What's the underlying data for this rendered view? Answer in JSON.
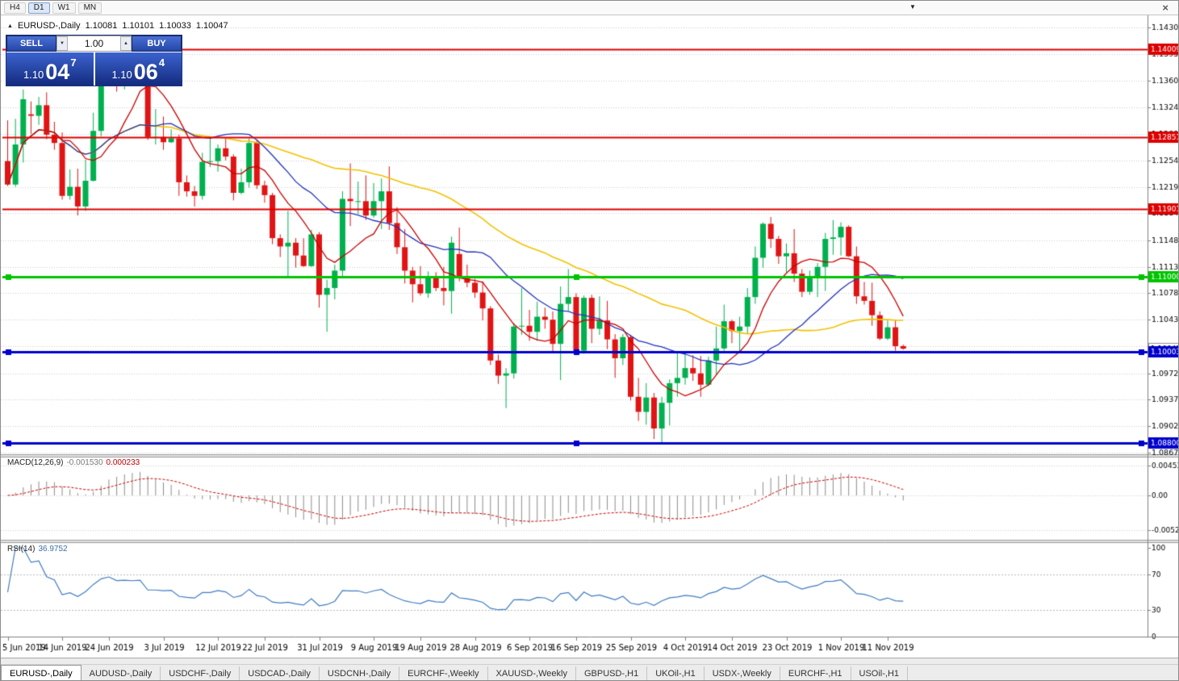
{
  "toolbar": {
    "timeframes": [
      {
        "label": "H4",
        "active": false
      },
      {
        "label": "D1",
        "active": true
      },
      {
        "label": "W1",
        "active": false
      },
      {
        "label": "MN",
        "active": false
      }
    ]
  },
  "window_controls": {
    "close_icon": "×",
    "panel_arrow": "▼"
  },
  "chart_header": {
    "arrow": "▲",
    "symbol": "EURUSD-,Daily",
    "open": "1.10081",
    "high": "1.10101",
    "low": "1.10033",
    "close": "1.10047"
  },
  "one_click": {
    "sell_label": "SELL",
    "buy_label": "BUY",
    "volume": "1.00",
    "down_arrow": "▼",
    "up_arrow": "▲",
    "sell_price_small": "1.10",
    "sell_price_big": "04",
    "sell_price_sup": "7",
    "buy_price_small": "1.10",
    "buy_price_big": "06",
    "buy_price_sup": "4"
  },
  "macd_header": {
    "name": "MACD(12,26,9)",
    "value_main": "-0.001530",
    "value_signal": "0.000233"
  },
  "rsi_header": {
    "name": "RSI(14)",
    "value": "36.9752"
  },
  "tabs": [
    {
      "label": "EURUSD-,Daily",
      "active": true
    },
    {
      "label": "AUDUSD-,Daily",
      "active": false
    },
    {
      "label": "USDCHF-,Daily",
      "active": false
    },
    {
      "label": "USDCAD-,Daily",
      "active": false
    },
    {
      "label": "USDCNH-,Daily",
      "active": false
    },
    {
      "label": "EURCHF-,Weekly",
      "active": false
    },
    {
      "label": "XAUUSD-,Weekly",
      "active": false
    },
    {
      "label": "GBPUSD-,H1",
      "active": false
    },
    {
      "label": "UKOil-,H1",
      "active": false
    },
    {
      "label": "USDX-,Weekly",
      "active": false
    },
    {
      "label": "EURCHF-,H1",
      "active": false
    },
    {
      "label": "USOil-,H1",
      "active": false
    }
  ],
  "chart_data": {
    "type": "candlestick",
    "symbol": "EURUSD-",
    "timeframe": "Daily",
    "colors": {
      "up": "#00b04f",
      "down": "#e01414",
      "grid": "#cccccc"
    },
    "price_axis": {
      "ticks": [
        1.143,
        1.1395,
        1.136,
        1.1324,
        1.1289,
        1.1254,
        1.1219,
        1.1184,
        1.1148,
        1.1113,
        1.1078,
        1.1043,
        1.1008,
        1.0972,
        1.0937,
        1.0902,
        1.0867
      ],
      "labels": [
        "1.14300",
        "1.13950",
        "1.13600",
        "1.13240",
        "1.12890",
        "1.12540",
        "1.12190",
        "1.11840",
        "1.11480",
        "1.11130",
        "1.10780",
        "1.10430",
        "1.10080",
        "1.09720",
        "1.09370",
        "1.09020",
        "1.08670"
      ]
    },
    "hlines": [
      {
        "price": 1.14009,
        "label": "1.14009",
        "color": "#dd0000",
        "width": 2,
        "selected": false
      },
      {
        "price": 1.12851,
        "label": "1.12851",
        "color": "#dd0000",
        "width": 2,
        "selected": false
      },
      {
        "price": 1.11901,
        "label": "1.11901",
        "color": "#dd0000",
        "width": 2,
        "selected": false
      },
      {
        "price": 1.11,
        "label": "1.11000",
        "color": "#00c400",
        "width": 3,
        "selected": true
      },
      {
        "price": 1.10003,
        "label": "1.10003",
        "color": "#0000cc",
        "width": 3,
        "selected": true
      },
      {
        "price": 1.088,
        "label": "1.08800",
        "color": "#0000cc",
        "width": 3,
        "selected": true
      }
    ],
    "bid_tag": {
      "price": 1.10047,
      "label": "1.10047"
    },
    "moving_averages": [
      {
        "period": 45,
        "color": "#f2c200",
        "width": 1.6
      },
      {
        "period": 20,
        "color": "#2233bb",
        "width": 1.3
      },
      {
        "period": 8,
        "color": "#cc0000",
        "width": 1.3
      }
    ],
    "macd": {
      "params": [
        12,
        26,
        9
      ],
      "hist_color": "#8c8c8c",
      "signal_color": "#cc0000",
      "grid": [
        {
          "value": 0.004536,
          "label": "0.004536"
        },
        {
          "value": 0,
          "label": "0.00"
        },
        {
          "value": -0.0052,
          "label": "-0.00520"
        }
      ]
    },
    "rsi": {
      "period": 14,
      "color": "#3f7cc0",
      "levels": [
        70,
        30
      ],
      "axis": [
        {
          "value": 100,
          "label": "100"
        },
        {
          "value": 70,
          "label": "70"
        },
        {
          "value": 30,
          "label": "30"
        },
        {
          "value": 0,
          "label": "0"
        }
      ]
    },
    "date_ticks": [
      {
        "label": "5 Jun 2019",
        "index": 0
      },
      {
        "label": "14 Jun 2019",
        "index": 7
      },
      {
        "label": "24 Jun 2019",
        "index": 13
      },
      {
        "label": "3 Jul 2019",
        "index": 20
      },
      {
        "label": "12 Jul 2019",
        "index": 27
      },
      {
        "label": "22 Jul 2019",
        "index": 33
      },
      {
        "label": "31 Jul 2019",
        "index": 40
      },
      {
        "label": "9 Aug 2019",
        "index": 47
      },
      {
        "label": "19 Aug 2019",
        "index": 53
      },
      {
        "label": "28 Aug 2019",
        "index": 60
      },
      {
        "label": "6 Sep 2019",
        "index": 67
      },
      {
        "label": "16 Sep 2019",
        "index": 73
      },
      {
        "label": "25 Sep 2019",
        "index": 80
      },
      {
        "label": "4 Oct 2019",
        "index": 87
      },
      {
        "label": "14 Oct 2019",
        "index": 93
      },
      {
        "label": "23 Oct 2019",
        "index": 100
      },
      {
        "label": "1 Nov 2019",
        "index": 107
      },
      {
        "label": "11 Nov 2019",
        "index": 113
      }
    ],
    "candles": [
      [
        1.1253,
        1.1307,
        1.122,
        1.1222
      ],
      [
        1.1222,
        1.1309,
        1.1219,
        1.1275
      ],
      [
        1.1275,
        1.1348,
        1.1251,
        1.1335
      ],
      [
        1.1315,
        1.1332,
        1.1289,
        1.1313
      ],
      [
        1.1313,
        1.1338,
        1.1301,
        1.1327
      ],
      [
        1.1327,
        1.1344,
        1.1282,
        1.1288
      ],
      [
        1.1288,
        1.1305,
        1.1268,
        1.1277
      ],
      [
        1.1277,
        1.1291,
        1.1202,
        1.1207
      ],
      [
        1.1207,
        1.1242,
        1.1202,
        1.1219
      ],
      [
        1.1219,
        1.1243,
        1.1181,
        1.1193
      ],
      [
        1.1193,
        1.1255,
        1.1187,
        1.1227
      ],
      [
        1.1227,
        1.1317,
        1.1226,
        1.1293
      ],
      [
        1.1293,
        1.1378,
        1.1286,
        1.1368
      ],
      [
        1.1368,
        1.1402,
        1.1362,
        1.1399
      ],
      [
        1.1399,
        1.1405,
        1.1345,
        1.1365
      ],
      [
        1.1365,
        1.1391,
        1.1348,
        1.1371
      ],
      [
        1.1371,
        1.1388,
        1.1357,
        1.1367
      ],
      [
        1.1367,
        1.1391,
        1.1352,
        1.1373
      ],
      [
        1.1364,
        1.137,
        1.1281,
        1.1285
      ],
      [
        1.1285,
        1.1322,
        1.1275,
        1.1285
      ],
      [
        1.1285,
        1.1312,
        1.1268,
        1.1278
      ],
      [
        1.1278,
        1.1295,
        1.1277,
        1.1283
      ],
      [
        1.1283,
        1.1288,
        1.1207,
        1.1225
      ],
      [
        1.1225,
        1.1234,
        1.1206,
        1.1213
      ],
      [
        1.1213,
        1.122,
        1.1193,
        1.1207
      ],
      [
        1.1207,
        1.1264,
        1.1202,
        1.1252
      ],
      [
        1.1252,
        1.1286,
        1.1245,
        1.1253
      ],
      [
        1.1253,
        1.1275,
        1.1239,
        1.127
      ],
      [
        1.127,
        1.1284,
        1.1254,
        1.1259
      ],
      [
        1.1259,
        1.1262,
        1.1201,
        1.1211
      ],
      [
        1.1211,
        1.1243,
        1.1209,
        1.1225
      ],
      [
        1.1225,
        1.1283,
        1.1218,
        1.1277
      ],
      [
        1.1277,
        1.1281,
        1.1216,
        1.1221
      ],
      [
        1.1221,
        1.1227,
        1.1198,
        1.1208
      ],
      [
        1.1208,
        1.1211,
        1.1143,
        1.1151
      ],
      [
        1.1151,
        1.1156,
        1.1126,
        1.114
      ],
      [
        1.114,
        1.1187,
        1.1101,
        1.1145
      ],
      [
        1.1145,
        1.1151,
        1.1112,
        1.1128
      ],
      [
        1.1128,
        1.1151,
        1.1113,
        1.1114
      ],
      [
        1.1114,
        1.1162,
        1.1113,
        1.1156
      ],
      [
        1.1156,
        1.1159,
        1.1059,
        1.1076
      ],
      [
        1.1076,
        1.1096,
        1.1027,
        1.1085
      ],
      [
        1.1085,
        1.1116,
        1.107,
        1.1108
      ],
      [
        1.1108,
        1.1213,
        1.1101,
        1.1203
      ],
      [
        1.1203,
        1.125,
        1.1167,
        1.12
      ],
      [
        1.12,
        1.1226,
        1.1183,
        1.12
      ],
      [
        1.12,
        1.1234,
        1.1175,
        1.1181
      ],
      [
        1.1181,
        1.1224,
        1.1178,
        1.12
      ],
      [
        1.12,
        1.123,
        1.1163,
        1.1213
      ],
      [
        1.1213,
        1.1246,
        1.1162,
        1.1171
      ],
      [
        1.1171,
        1.1192,
        1.113,
        1.1139
      ],
      [
        1.1139,
        1.1163,
        1.1091,
        1.1108
      ],
      [
        1.1108,
        1.1113,
        1.1066,
        1.109
      ],
      [
        1.109,
        1.1114,
        1.1075,
        1.1078
      ],
      [
        1.1078,
        1.1107,
        1.1072,
        1.1099
      ],
      [
        1.1099,
        1.1106,
        1.1081,
        1.1085
      ],
      [
        1.1085,
        1.1113,
        1.1062,
        1.1081
      ],
      [
        1.1081,
        1.1153,
        1.1051,
        1.1145
      ],
      [
        1.113,
        1.1165,
        1.1094,
        1.1101
      ],
      [
        1.1101,
        1.1116,
        1.1086,
        1.1092
      ],
      [
        1.1092,
        1.1097,
        1.1072,
        1.1079
      ],
      [
        1.1079,
        1.1094,
        1.1042,
        1.1058
      ],
      [
        1.1058,
        1.1061,
        1.0983,
        1.0989
      ],
      [
        1.0989,
        1.0997,
        1.0958,
        1.0969
      ],
      [
        1.0969,
        1.0979,
        1.0926,
        1.0972
      ],
      [
        1.0972,
        1.1039,
        1.0965,
        1.1034
      ],
      [
        1.1034,
        1.1085,
        1.1023,
        1.1035
      ],
      [
        1.1035,
        1.1056,
        1.1015,
        1.1027
      ],
      [
        1.1027,
        1.1067,
        1.1015,
        1.1047
      ],
      [
        1.1047,
        1.1059,
        1.1031,
        1.1043
      ],
      [
        1.1043,
        1.1054,
        1.0999,
        1.1011
      ],
      [
        1.1011,
        1.1087,
        1.0963,
        1.1064
      ],
      [
        1.1064,
        1.111,
        1.1055,
        1.1073
      ],
      [
        1.1073,
        1.1078,
        1.0996,
        1.1002
      ],
      [
        1.1002,
        1.1075,
        1.0998,
        1.1072
      ],
      [
        1.1072,
        1.1076,
        1.1012,
        1.1031
      ],
      [
        1.1031,
        1.1074,
        1.1023,
        1.1042
      ],
      [
        1.1042,
        1.1068,
        1.1004,
        1.1017
      ],
      [
        1.1017,
        1.1024,
        1.0966,
        1.0992
      ],
      [
        1.0992,
        1.1024,
        1.0983,
        1.102
      ],
      [
        1.102,
        1.1023,
        1.0936,
        1.0941
      ],
      [
        1.0941,
        1.0966,
        1.0909,
        1.0921
      ],
      [
        1.0921,
        1.0959,
        1.0904,
        1.094
      ],
      [
        1.094,
        1.0946,
        1.0885,
        1.0899
      ],
      [
        1.0899,
        1.0941,
        1.0879,
        1.0933
      ],
      [
        1.0933,
        1.0964,
        1.0903,
        1.0959
      ],
      [
        1.0959,
        1.0999,
        1.0941,
        1.0966
      ],
      [
        1.0966,
        1.0999,
        1.0957,
        1.0979
      ],
      [
        1.0979,
        1.0996,
        1.0962,
        1.0972
      ],
      [
        1.0972,
        1.0995,
        1.0941,
        1.0957
      ],
      [
        1.0957,
        1.0994,
        1.0955,
        1.0989
      ],
      [
        1.0989,
        1.1034,
        1.0971,
        1.1005
      ],
      [
        1.1005,
        1.1063,
        1.1002,
        1.1041
      ],
      [
        1.1041,
        1.1043,
        1.1012,
        1.1028
      ],
      [
        1.1028,
        1.1047,
        1.1001,
        1.1034
      ],
      [
        1.1034,
        1.1085,
        1.1024,
        1.1073
      ],
      [
        1.1073,
        1.114,
        1.1064,
        1.1125
      ],
      [
        1.1125,
        1.1172,
        1.1112,
        1.117
      ],
      [
        1.117,
        1.1179,
        1.1138,
        1.115
      ],
      [
        1.115,
        1.1154,
        1.1117,
        1.1127
      ],
      [
        1.1127,
        1.1144,
        1.1106,
        1.1131
      ],
      [
        1.1131,
        1.1163,
        1.1093,
        1.1104
      ],
      [
        1.1104,
        1.111,
        1.1073,
        1.108
      ],
      [
        1.108,
        1.1108,
        1.1076,
        1.1099
      ],
      [
        1.1099,
        1.1118,
        1.1073,
        1.1113
      ],
      [
        1.1113,
        1.1158,
        1.1081,
        1.115
      ],
      [
        1.115,
        1.1175,
        1.1129,
        1.1152
      ],
      [
        1.1152,
        1.1172,
        1.1128,
        1.1166
      ],
      [
        1.1166,
        1.1168,
        1.1126,
        1.1127
      ],
      [
        1.1127,
        1.114,
        1.1064,
        1.1074
      ],
      [
        1.1074,
        1.1093,
        1.1063,
        1.1068
      ],
      [
        1.1068,
        1.1092,
        1.1035,
        1.1049
      ],
      [
        1.1049,
        1.1054,
        1.1016,
        1.1018
      ],
      [
        1.1018,
        1.1042,
        1.1016,
        1.1033
      ],
      [
        1.1033,
        1.1043,
        1.1002,
        1.1008
      ],
      [
        1.10081,
        1.10101,
        1.10033,
        1.10047
      ]
    ]
  }
}
